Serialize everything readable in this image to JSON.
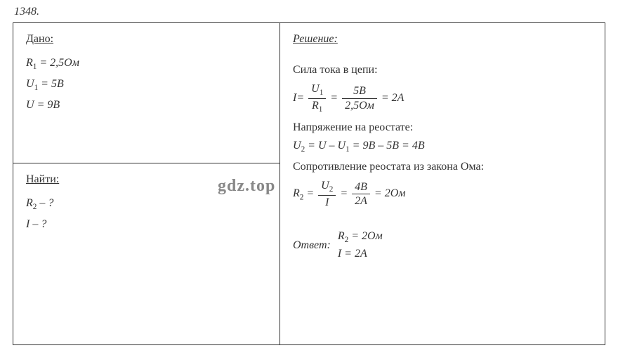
{
  "problem_number": "1348.",
  "watermark": "gdz.top",
  "given": {
    "title": "Дано:",
    "lines": [
      {
        "var": "R",
        "sub": "1",
        "eq": "= 2,5",
        "unit": "Ом"
      },
      {
        "var": "U",
        "sub": "1",
        "eq": "= 5",
        "unit": "В"
      },
      {
        "var": "U",
        "sub": "",
        "eq": "= 9",
        "unit": "В"
      }
    ]
  },
  "find": {
    "title": "Найти:",
    "lines": [
      {
        "var": "R",
        "sub": "2",
        "tail": "– ?"
      },
      {
        "var": "I",
        "sub": "",
        "tail": "– ?"
      }
    ]
  },
  "solution": {
    "title": "Решение:",
    "step1_label": "Сила тока в цепи:",
    "eq1": {
      "lhs": "I",
      "frac1_num_var": "U",
      "frac1_num_sub": "1",
      "frac1_den_var": "R",
      "frac1_den_sub": "1",
      "frac2_num": "5В",
      "frac2_den": "2,5Ом",
      "result": "2А"
    },
    "step2_label": "Напряжение на реостате:",
    "eq2": {
      "lhs_var": "U",
      "lhs_sub": "2",
      "rhs_a_var": "U",
      "rhs_a_sub": "",
      "minus": "–",
      "rhs_b_var": "U",
      "rhs_b_sub": "1",
      "val_a": "9В",
      "val_b": "5В",
      "result": "4В"
    },
    "step3_label": "Сопротивление реостата из закона Ома:",
    "eq3": {
      "lhs_var": "R",
      "lhs_sub": "2",
      "frac1_num_var": "U",
      "frac1_num_sub": "2",
      "frac1_den_var": "I",
      "frac2_num": "4В",
      "frac2_den": "2А",
      "result": "2Ом"
    },
    "answer_label": "Ответ:",
    "answer1": {
      "var": "R",
      "sub": "2",
      "val": "= 2Ом"
    },
    "answer2": {
      "var": "I",
      "sub": "",
      "val": "= 2А"
    }
  },
  "style": {
    "font_family": "Times New Roman",
    "font_size_pt": 12,
    "border_color": "#333333",
    "text_color": "#333333",
    "background_color": "#ffffff",
    "watermark_color": "#888888"
  }
}
